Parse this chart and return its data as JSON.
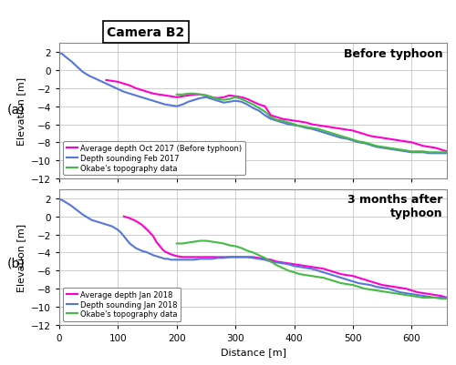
{
  "title": "Camera B2",
  "xlabel": "Distance [m]",
  "ylabel": "Elevation [m]",
  "xlim": [
    0,
    660
  ],
  "ylim": [
    -12,
    3
  ],
  "yticks": [
    -12,
    -10,
    -8,
    -6,
    -4,
    -2,
    0,
    2
  ],
  "xticks": [
    0,
    100,
    200,
    300,
    400,
    500,
    600
  ],
  "panel_a_label": "Before typhoon",
  "panel_b_label": "3 months after\ntyphoon",
  "color_magenta": "#FF00CC",
  "color_blue": "#5577DD",
  "color_green": "#44BB44",
  "legend_a": [
    "Average depth Oct 2017 (Before typhoon)",
    "Depth sounding Feb 2017",
    "Okabe's topography data"
  ],
  "legend_b": [
    "Average depth Jan 2018",
    "Depth sounding Jan 2018",
    "Okabe's topography data"
  ],
  "panel_a": {
    "magenta": {
      "x": [
        80,
        90,
        100,
        110,
        120,
        130,
        140,
        150,
        160,
        170,
        180,
        190,
        200,
        210,
        220,
        230,
        240,
        250,
        260,
        270,
        280,
        290,
        300,
        310,
        320,
        330,
        340,
        350,
        360,
        370,
        380,
        390,
        400,
        410,
        420,
        430,
        440,
        450,
        460,
        470,
        480,
        490,
        500,
        510,
        520,
        530,
        540,
        550,
        560,
        570,
        580,
        590,
        600,
        610,
        620,
        630,
        640,
        650,
        660
      ],
      "y": [
        -1.1,
        -1.2,
        -1.3,
        -1.5,
        -1.7,
        -2.0,
        -2.2,
        -2.4,
        -2.6,
        -2.7,
        -2.8,
        -2.9,
        -3.0,
        -2.9,
        -2.8,
        -2.7,
        -2.7,
        -2.8,
        -3.0,
        -3.1,
        -3.0,
        -2.8,
        -2.9,
        -3.0,
        -3.2,
        -3.5,
        -3.8,
        -4.0,
        -5.0,
        -5.2,
        -5.4,
        -5.5,
        -5.6,
        -5.7,
        -5.8,
        -6.0,
        -6.1,
        -6.2,
        -6.3,
        -6.4,
        -6.5,
        -6.6,
        -6.7,
        -6.9,
        -7.1,
        -7.3,
        -7.4,
        -7.5,
        -7.6,
        -7.7,
        -7.8,
        -7.9,
        -8.0,
        -8.2,
        -8.4,
        -8.5,
        -8.6,
        -8.8,
        -9.0
      ]
    },
    "blue": {
      "x": [
        0,
        5,
        10,
        20,
        30,
        40,
        50,
        60,
        70,
        80,
        90,
        100,
        110,
        120,
        130,
        140,
        150,
        160,
        170,
        180,
        190,
        200,
        210,
        220,
        230,
        240,
        250,
        260,
        270,
        280,
        290,
        300,
        310,
        320,
        330,
        340,
        350,
        360,
        370,
        380,
        390,
        400,
        410,
        420,
        430,
        440,
        450,
        460,
        470,
        480,
        490,
        500,
        510,
        520,
        530,
        540,
        550,
        560,
        570,
        580,
        590,
        600,
        610,
        620,
        630,
        640,
        650,
        660
      ],
      "y": [
        1.9,
        1.8,
        1.5,
        1.0,
        0.4,
        -0.2,
        -0.6,
        -0.9,
        -1.2,
        -1.5,
        -1.8,
        -2.1,
        -2.4,
        -2.6,
        -2.8,
        -3.0,
        -3.2,
        -3.4,
        -3.6,
        -3.8,
        -3.9,
        -4.0,
        -3.8,
        -3.5,
        -3.3,
        -3.1,
        -3.0,
        -3.2,
        -3.4,
        -3.6,
        -3.5,
        -3.4,
        -3.5,
        -3.8,
        -4.2,
        -4.5,
        -5.0,
        -5.4,
        -5.6,
        -5.8,
        -6.0,
        -6.1,
        -6.2,
        -6.4,
        -6.5,
        -6.7,
        -6.9,
        -7.1,
        -7.3,
        -7.5,
        -7.6,
        -7.8,
        -8.0,
        -8.1,
        -8.3,
        -8.5,
        -8.6,
        -8.7,
        -8.8,
        -8.9,
        -9.0,
        -9.1,
        -9.1,
        -9.1,
        -9.2,
        -9.2,
        -9.2,
        -9.2
      ]
    },
    "green": {
      "x": [
        200,
        210,
        220,
        230,
        240,
        250,
        260,
        270,
        280,
        290,
        300,
        310,
        320,
        330,
        340,
        350,
        360,
        370,
        380,
        390,
        400,
        410,
        420,
        430,
        440,
        450,
        460,
        470,
        480,
        490,
        500,
        510,
        520,
        530,
        540,
        550,
        560,
        570,
        580,
        590,
        600,
        610,
        620,
        630,
        640,
        650,
        660
      ],
      "y": [
        -2.7,
        -2.7,
        -2.6,
        -2.6,
        -2.7,
        -2.8,
        -3.0,
        -3.2,
        -3.3,
        -3.2,
        -3.0,
        -3.2,
        -3.5,
        -3.8,
        -4.2,
        -4.6,
        -5.2,
        -5.5,
        -5.6,
        -5.8,
        -6.0,
        -6.2,
        -6.3,
        -6.4,
        -6.5,
        -6.7,
        -6.9,
        -7.1,
        -7.3,
        -7.5,
        -7.7,
        -7.9,
        -8.0,
        -8.2,
        -8.4,
        -8.5,
        -8.6,
        -8.7,
        -8.8,
        -8.9,
        -9.0,
        -9.0,
        -9.0,
        -9.1,
        -9.1,
        -9.1,
        -9.1
      ]
    }
  },
  "panel_b": {
    "magenta": {
      "x": [
        110,
        120,
        130,
        140,
        150,
        160,
        165,
        170,
        175,
        180,
        190,
        200,
        210,
        220,
        230,
        240,
        250,
        260,
        270,
        280,
        290,
        300,
        310,
        320,
        330,
        340,
        350,
        360,
        370,
        380,
        390,
        400,
        410,
        420,
        430,
        440,
        450,
        460,
        470,
        480,
        490,
        500,
        510,
        520,
        530,
        540,
        550,
        560,
        570,
        580,
        590,
        600,
        610,
        620,
        630,
        640,
        650,
        660
      ],
      "y": [
        0.0,
        -0.2,
        -0.5,
        -0.9,
        -1.5,
        -2.2,
        -2.8,
        -3.2,
        -3.6,
        -3.9,
        -4.2,
        -4.4,
        -4.5,
        -4.5,
        -4.5,
        -4.5,
        -4.5,
        -4.5,
        -4.5,
        -4.5,
        -4.5,
        -4.5,
        -4.5,
        -4.5,
        -4.5,
        -4.6,
        -4.7,
        -4.8,
        -5.0,
        -5.1,
        -5.2,
        -5.3,
        -5.4,
        -5.5,
        -5.6,
        -5.7,
        -5.8,
        -6.0,
        -6.2,
        -6.4,
        -6.5,
        -6.6,
        -6.8,
        -7.0,
        -7.2,
        -7.4,
        -7.6,
        -7.7,
        -7.8,
        -7.9,
        -8.0,
        -8.2,
        -8.4,
        -8.5,
        -8.6,
        -8.7,
        -8.8,
        -9.0
      ]
    },
    "blue": {
      "x": [
        0,
        5,
        10,
        20,
        30,
        40,
        50,
        55,
        60,
        65,
        70,
        75,
        80,
        85,
        90,
        95,
        100,
        105,
        110,
        115,
        120,
        130,
        140,
        150,
        160,
        170,
        175,
        180,
        185,
        190,
        200,
        210,
        220,
        230,
        240,
        250,
        260,
        270,
        280,
        290,
        300,
        310,
        320,
        330,
        340,
        350,
        360,
        370,
        380,
        390,
        400,
        410,
        420,
        430,
        440,
        450,
        460,
        470,
        480,
        490,
        500,
        510,
        520,
        530,
        540,
        550,
        560,
        570,
        580,
        590,
        600,
        610,
        620,
        630,
        640,
        650,
        660
      ],
      "y": [
        1.9,
        1.8,
        1.6,
        1.2,
        0.7,
        0.2,
        -0.2,
        -0.4,
        -0.5,
        -0.6,
        -0.7,
        -0.8,
        -0.9,
        -1.0,
        -1.1,
        -1.3,
        -1.5,
        -1.8,
        -2.2,
        -2.6,
        -3.0,
        -3.5,
        -3.8,
        -4.0,
        -4.3,
        -4.5,
        -4.6,
        -4.7,
        -4.7,
        -4.8,
        -4.8,
        -4.8,
        -4.8,
        -4.8,
        -4.7,
        -4.7,
        -4.7,
        -4.6,
        -4.6,
        -4.5,
        -4.5,
        -4.5,
        -4.5,
        -4.6,
        -4.7,
        -4.8,
        -5.0,
        -5.1,
        -5.2,
        -5.3,
        -5.5,
        -5.6,
        -5.7,
        -5.8,
        -6.0,
        -6.2,
        -6.4,
        -6.6,
        -6.8,
        -7.0,
        -7.2,
        -7.4,
        -7.5,
        -7.6,
        -7.8,
        -7.9,
        -8.0,
        -8.2,
        -8.4,
        -8.5,
        -8.6,
        -8.7,
        -8.8,
        -8.9,
        -9.0,
        -9.0,
        -9.1
      ]
    },
    "green": {
      "x": [
        200,
        210,
        220,
        230,
        240,
        250,
        260,
        270,
        280,
        290,
        300,
        310,
        320,
        330,
        340,
        350,
        360,
        370,
        380,
        390,
        400,
        410,
        420,
        430,
        440,
        450,
        460,
        470,
        480,
        490,
        500,
        510,
        520,
        530,
        540,
        550,
        560,
        570,
        580,
        590,
        600,
        610,
        620,
        630,
        640,
        650,
        660
      ],
      "y": [
        -3.0,
        -3.0,
        -2.9,
        -2.8,
        -2.7,
        -2.7,
        -2.8,
        -2.9,
        -3.0,
        -3.2,
        -3.3,
        -3.5,
        -3.8,
        -4.0,
        -4.3,
        -4.6,
        -5.0,
        -5.4,
        -5.7,
        -6.0,
        -6.2,
        -6.4,
        -6.5,
        -6.6,
        -6.7,
        -6.8,
        -7.0,
        -7.2,
        -7.4,
        -7.5,
        -7.6,
        -7.8,
        -8.0,
        -8.1,
        -8.2,
        -8.3,
        -8.4,
        -8.5,
        -8.6,
        -8.7,
        -8.8,
        -8.9,
        -9.0,
        -9.0,
        -9.0,
        -9.1,
        -9.1
      ]
    }
  },
  "bg_color": "#ffffff",
  "grid_color": "#bbbbbb",
  "lw": 1.5,
  "figsize": [
    5.0,
    4.02
  ],
  "dpi": 100
}
